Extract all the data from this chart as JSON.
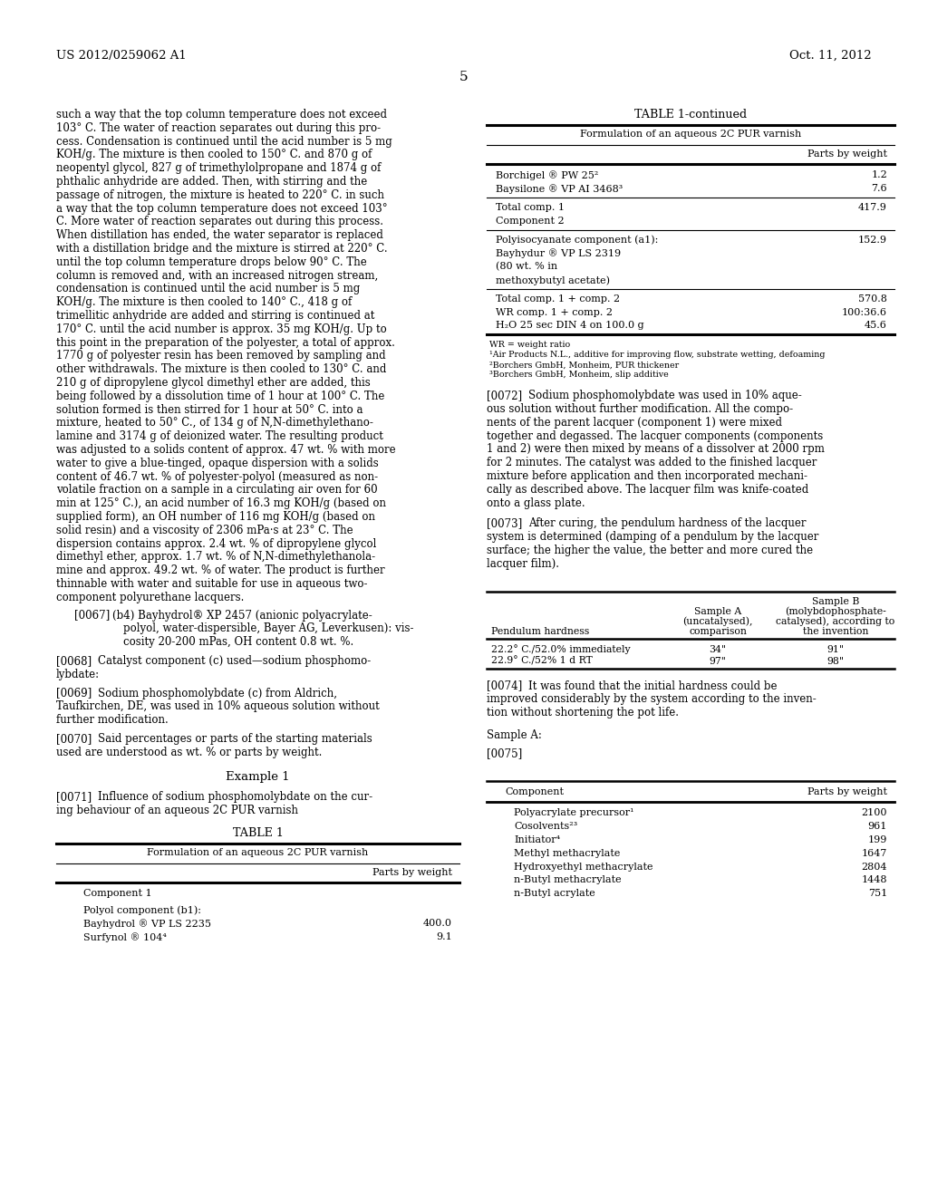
{
  "bg_color": "#ffffff",
  "header_left": "US 2012/0259062 A1",
  "header_right": "Oct. 11, 2012",
  "page_num": "5",
  "left_col_lines": [
    "such a way that the top column temperature does not exceed",
    "103° C. The water of reaction separates out during this pro-",
    "cess. Condensation is continued until the acid number is 5 mg",
    "KOH/g. The mixture is then cooled to 150° C. and 870 g of",
    "neopentyl glycol, 827 g of trimethylolpropane and 1874 g of",
    "phthalic anhydride are added. Then, with stirring and the",
    "passage of nitrogen, the mixture is heated to 220° C. in such",
    "a way that the top column temperature does not exceed 103°",
    "C. More water of reaction separates out during this process.",
    "When distillation has ended, the water separator is replaced",
    "with a distillation bridge and the mixture is stirred at 220° C.",
    "until the top column temperature drops below 90° C. The",
    "column is removed and, with an increased nitrogen stream,",
    "condensation is continued until the acid number is 5 mg",
    "KOH/g. The mixture is then cooled to 140° C., 418 g of",
    "trimellitic anhydride are added and stirring is continued at",
    "170° C. until the acid number is approx. 35 mg KOH/g. Up to",
    "this point in the preparation of the polyester, a total of approx.",
    "1770 g of polyester resin has been removed by sampling and",
    "other withdrawals. The mixture is then cooled to 130° C. and",
    "210 g of dipropylene glycol dimethyl ether are added, this",
    "being followed by a dissolution time of 1 hour at 100° C. The",
    "solution formed is then stirred for 1 hour at 50° C. into a",
    "mixture, heated to 50° C., of 134 g of N,N-dimethylethano-",
    "lamine and 3174 g of deionized water. The resulting product",
    "was adjusted to a solids content of approx. 47 wt. % with more",
    "water to give a blue-tinged, opaque dispersion with a solids",
    "content of 46.7 wt. % of polyester-polyol (measured as non-",
    "volatile fraction on a sample in a circulating air oven for 60",
    "min at 125° C.), an acid number of 16.3 mg KOH/g (based on",
    "supplied form), an OH number of 116 mg KOH/g (based on",
    "solid resin) and a viscosity of 2306 mPa·s at 23° C. The",
    "dispersion contains approx. 2.4 wt. % of dipropylene glycol",
    "dimethyl ether, approx. 1.7 wt. % of N,N-dimethylethanola-",
    "mine and approx. 49.2 wt. % of water. The product is further",
    "thinnable with water and suitable for use in aqueous two-",
    "component polyurethane lacquers."
  ],
  "table1_continued_rows": [
    {
      "label": "Borchigel ® PW 25²",
      "value": "1.2",
      "sep_after": false
    },
    {
      "label": "Baysilone ® VP AI 3468³",
      "value": "7.6",
      "sep_after": true
    },
    {
      "label": "Total comp. 1",
      "value": "417.9",
      "sep_after": false
    },
    {
      "label": "Component 2",
      "value": "",
      "sep_after": true
    },
    {
      "label": "Polyisocyanate component (a1):",
      "value": "152.9",
      "sep_after": false
    },
    {
      "label": "Bayhydur ® VP LS 2319",
      "value": "",
      "sep_after": false
    },
    {
      "label": "(80 wt. % in",
      "value": "",
      "sep_after": false
    },
    {
      "label": "methoxybutyl acetate)",
      "value": "",
      "sep_after": true
    },
    {
      "label": "Total comp. 1 + comp. 2",
      "value": "570.8",
      "sep_after": false
    },
    {
      "label": "WR comp. 1 + comp. 2",
      "value": "100:36.6",
      "sep_after": false
    },
    {
      "label": "H₂O 25 sec DIN 4 on 100.0 g",
      "value": "45.6",
      "sep_after": false
    }
  ],
  "table1_footnotes": [
    "WR = weight ratio",
    "¹Air Products N.L., additive for improving flow, substrate wetting, defoaming",
    "²Borchers GmbH, Monheim, PUR thickener",
    "³Borchers GmbH, Monheim, slip additive"
  ],
  "pendulum_rows": [
    {
      "label": "22.2° C./52.0% immediately",
      "sampleA": "34\"",
      "sampleB": "91\""
    },
    {
      "label": "22.9° C./52% 1 d RT",
      "sampleA": "97\"",
      "sampleB": "98\""
    }
  ],
  "bottom_table_rows": [
    {
      "label": "Polyacrylate precursor¹",
      "value": "2100"
    },
    {
      "label": "Cosolvents²³",
      "value": "961"
    },
    {
      "label": "Initiator⁴",
      "value": "199"
    },
    {
      "label": "Methyl methacrylate",
      "value": "1647"
    },
    {
      "label": "Hydroxyethyl methacrylate",
      "value": "2804"
    },
    {
      "label": "n-Butyl methacrylate",
      "value": "1448"
    },
    {
      "label": "n-Butyl acrylate",
      "value": "751"
    }
  ]
}
